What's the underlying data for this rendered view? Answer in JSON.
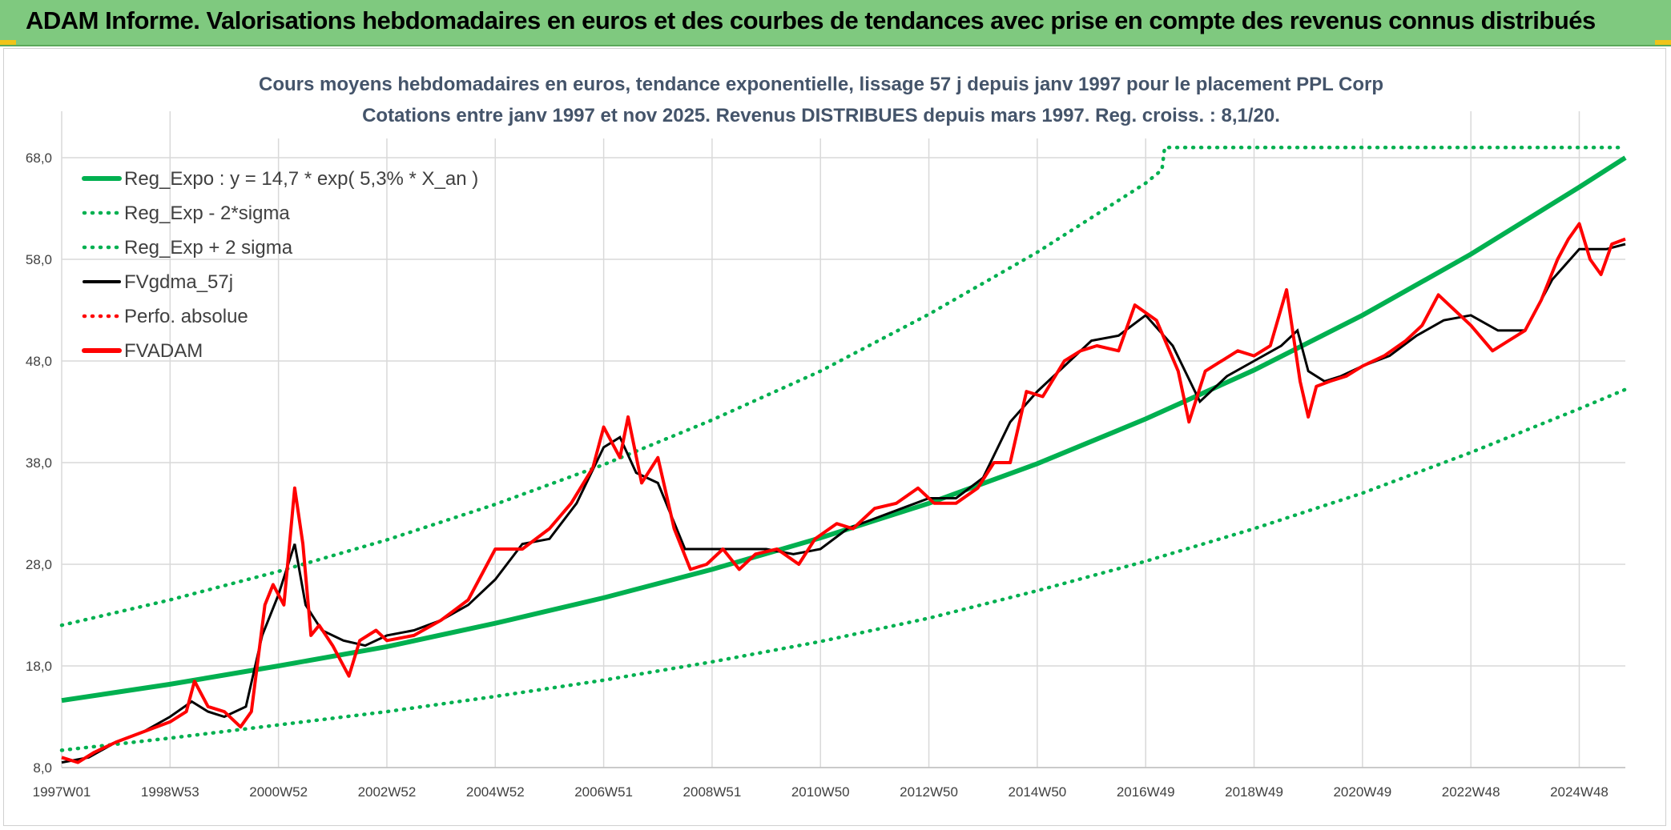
{
  "banner": {
    "title": "ADAM Informe. Valorisations hebdomadaires en euros et des courbes de tendances avec prise en compte des revenus connus distribués"
  },
  "colors": {
    "banner_bg": "#7fc97f",
    "trend": "#00b050",
    "bands": "#00b050",
    "gdma": "#000000",
    "fvadam": "#ff0000",
    "perfo": "#ff0000",
    "grid": "#d9d9d9"
  },
  "chart_data": {
    "type": "line",
    "title_line1": "Cours moyens hebdomadaires en euros, tendance exponentielle, lissage 57 j depuis janv 1997 pour le placement PPL Corp",
    "title_line2": "Cotations entre janv 1997 et nov 2025. Revenus DISTRIBUES depuis mars 1997. Reg. croiss. : 8,1/20.",
    "xlabel": "",
    "ylabel": "",
    "x_range": [
      1997.0,
      2025.85
    ],
    "ylim": [
      8,
      69
    ],
    "y_ticks": [
      "8,0",
      "18,0",
      "28,0",
      "38,0",
      "48,0",
      "58,0",
      "68,0"
    ],
    "y_tick_values": [
      8,
      18,
      28,
      38,
      48,
      58,
      68
    ],
    "x_ticks": [
      "1997W01",
      "1998W53",
      "2000W52",
      "2002W52",
      "2004W52",
      "2006W51",
      "2008W51",
      "2010W50",
      "2012W50",
      "2014W50",
      "2016W49",
      "2018W49",
      "2020W49",
      "2022W48",
      "2024W48"
    ],
    "x_tick_years": [
      1997.0,
      1999.0,
      2001.0,
      2003.0,
      2005.0,
      2007.0,
      2009.0,
      2011.0,
      2013.0,
      2015.0,
      2017.0,
      2019.0,
      2021.0,
      2023.0,
      2025.0
    ],
    "grid": true,
    "legend_position": "top-left",
    "legend": [
      {
        "label": "Reg_Expo : y = 14,7 * exp( 5,3% *  X_an )",
        "style": "solid-thick",
        "color": "#00b050"
      },
      {
        "label": "Reg_Exp - 2*sigma",
        "style": "dotted",
        "color": "#00b050"
      },
      {
        "label": "Reg_Exp + 2 sigma",
        "style": "dotted",
        "color": "#00b050"
      },
      {
        "label": "FVgdma_57j",
        "style": "solid",
        "color": "#000000"
      },
      {
        "label": "Perfo. absolue",
        "style": "dotted",
        "color": "#ff0000"
      },
      {
        "label": "FVADAM",
        "style": "solid-thick",
        "color": "#ff0000"
      }
    ],
    "series": [
      {
        "name": "Reg_Expo",
        "x": [
          1997.0,
          1999.0,
          2001.0,
          2003.0,
          2005.0,
          2007.0,
          2009.0,
          2011.0,
          2013.0,
          2015.0,
          2017.0,
          2019.0,
          2021.0,
          2023.0,
          2025.0,
          2025.85
        ],
        "values": [
          14.6,
          16.2,
          18.0,
          19.9,
          22.2,
          24.7,
          27.5,
          30.6,
          34.0,
          37.9,
          42.3,
          47.1,
          52.5,
          58.5,
          65.1,
          68.0
        ]
      },
      {
        "name": "Reg_Exp - 2*sigma",
        "x": [
          1997.0,
          1999.0,
          2001.0,
          2003.0,
          2005.0,
          2007.0,
          2009.0,
          2011.0,
          2013.0,
          2015.0,
          2017.0,
          2019.0,
          2021.0,
          2023.0,
          2025.0,
          2025.85
        ],
        "values": [
          9.7,
          10.9,
          12.2,
          13.5,
          15.0,
          16.6,
          18.4,
          20.4,
          22.7,
          25.4,
          28.3,
          31.5,
          35.0,
          39.0,
          43.3,
          45.2
        ]
      },
      {
        "name": "Reg_Exp + 2 sigma",
        "x": [
          1997.0,
          1999.0,
          2001.0,
          2003.0,
          2005.0,
          2007.0,
          2009.0,
          2011.0,
          2013.0,
          2015.0,
          2017.0,
          2017.3,
          2017.35,
          2025.85
        ],
        "values": [
          22.0,
          24.5,
          27.3,
          30.4,
          33.9,
          37.8,
          42.2,
          47.0,
          52.6,
          58.7,
          65.5,
          66.8,
          69.0,
          69.0
        ]
      },
      {
        "name": "FVgdma_57j",
        "x": [
          1997.0,
          1997.5,
          1998.0,
          1998.5,
          1999.0,
          1999.4,
          1999.7,
          2000.0,
          2000.4,
          2000.7,
          2001.0,
          2001.3,
          2001.5,
          2001.8,
          2002.2,
          2002.6,
          2003.0,
          2003.5,
          2004.0,
          2004.5,
          2005.0,
          2005.5,
          2006.0,
          2006.5,
          2007.0,
          2007.3,
          2007.6,
          2008.0,
          2008.5,
          2009.0,
          2009.5,
          2010.0,
          2010.5,
          2011.0,
          2011.5,
          2012.0,
          2012.5,
          2013.0,
          2013.5,
          2014.0,
          2014.5,
          2015.0,
          2015.5,
          2016.0,
          2016.5,
          2017.0,
          2017.5,
          2018.0,
          2018.5,
          2019.0,
          2019.5,
          2019.8,
          2020.0,
          2020.3,
          2020.6,
          2021.0,
          2021.5,
          2022.0,
          2022.5,
          2023.0,
          2023.5,
          2024.0,
          2024.5,
          2025.0,
          2025.5,
          2025.85
        ],
        "values": [
          8.5,
          9.0,
          10.5,
          11.5,
          13.0,
          14.5,
          13.5,
          13.0,
          14.0,
          21.0,
          25.0,
          30.0,
          24.0,
          21.5,
          20.5,
          20.0,
          21.0,
          21.5,
          22.5,
          24.0,
          26.5,
          30.0,
          30.5,
          34.0,
          39.5,
          40.5,
          37.0,
          36.0,
          29.5,
          29.5,
          29.5,
          29.5,
          29.0,
          29.5,
          31.5,
          32.5,
          33.5,
          34.5,
          34.5,
          36.5,
          42.0,
          45.0,
          47.5,
          50.0,
          50.5,
          52.5,
          49.5,
          44.0,
          46.5,
          48.0,
          49.5,
          51.0,
          47.0,
          46.0,
          46.5,
          47.5,
          48.5,
          50.5,
          52.0,
          52.5,
          51.0,
          51.0,
          56.0,
          59.0,
          59.0,
          59.5
        ]
      },
      {
        "name": "FVADAM",
        "x": [
          1997.0,
          1997.3,
          1997.6,
          1998.0,
          1998.5,
          1999.0,
          1999.3,
          1999.45,
          1999.7,
          2000.0,
          2000.3,
          2000.5,
          2000.75,
          2000.9,
          2001.1,
          2001.3,
          2001.45,
          2001.6,
          2001.75,
          2002.0,
          2002.3,
          2002.5,
          2002.8,
          2003.0,
          2003.5,
          2004.0,
          2004.5,
          2005.0,
          2005.5,
          2006.0,
          2006.4,
          2006.8,
          2007.0,
          2007.3,
          2007.45,
          2007.7,
          2008.0,
          2008.3,
          2008.6,
          2008.9,
          2009.2,
          2009.5,
          2009.8,
          2010.2,
          2010.6,
          2010.9,
          2011.3,
          2011.6,
          2012.0,
          2012.4,
          2012.8,
          2013.1,
          2013.5,
          2013.9,
          2014.2,
          2014.5,
          2014.8,
          2015.1,
          2015.5,
          2015.8,
          2016.1,
          2016.5,
          2016.8,
          2017.2,
          2017.6,
          2017.8,
          2018.1,
          2018.4,
          2018.7,
          2019.0,
          2019.3,
          2019.6,
          2019.85,
          2020.0,
          2020.15,
          2020.4,
          2020.7,
          2021.0,
          2021.4,
          2021.8,
          2022.1,
          2022.4,
          2022.7,
          2023.0,
          2023.4,
          2023.7,
          2024.0,
          2024.3,
          2024.6,
          2024.8,
          2025.0,
          2025.2,
          2025.4,
          2025.6,
          2025.85
        ],
        "values": [
          9.0,
          8.5,
          9.5,
          10.5,
          11.5,
          12.5,
          13.5,
          16.5,
          14.0,
          13.5,
          12.0,
          13.5,
          24.0,
          26.0,
          24.0,
          35.5,
          30.0,
          21.0,
          22.0,
          20.0,
          17.0,
          20.5,
          21.5,
          20.5,
          21.0,
          22.5,
          24.5,
          29.5,
          29.5,
          31.5,
          34.0,
          37.5,
          41.5,
          38.5,
          42.5,
          36.0,
          38.5,
          31.5,
          27.5,
          28.0,
          29.5,
          27.5,
          29.0,
          29.5,
          28.0,
          30.5,
          32.0,
          31.5,
          33.5,
          34.0,
          35.5,
          34.0,
          34.0,
          35.5,
          38.0,
          38.0,
          45.0,
          44.5,
          48.0,
          49.0,
          49.5,
          49.0,
          53.5,
          52.0,
          47.0,
          42.0,
          47.0,
          48.0,
          49.0,
          48.5,
          49.5,
          55.0,
          46.0,
          42.5,
          45.5,
          46.0,
          46.5,
          47.5,
          48.5,
          50.0,
          51.5,
          54.5,
          53.0,
          51.5,
          49.0,
          50.0,
          51.0,
          54.0,
          58.0,
          60.0,
          61.5,
          58.0,
          56.5,
          59.5,
          60.0
        ]
      }
    ]
  }
}
